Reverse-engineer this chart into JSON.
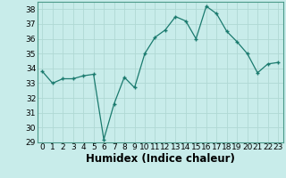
{
  "x": [
    0,
    1,
    2,
    3,
    4,
    5,
    6,
    7,
    8,
    9,
    10,
    11,
    12,
    13,
    14,
    15,
    16,
    17,
    18,
    19,
    20,
    21,
    22,
    23
  ],
  "y": [
    33.8,
    33.0,
    33.3,
    33.3,
    33.5,
    33.6,
    29.2,
    31.6,
    33.4,
    32.7,
    35.0,
    36.1,
    36.6,
    37.5,
    37.2,
    36.0,
    38.2,
    37.7,
    36.5,
    35.8,
    35.0,
    33.7,
    34.3,
    34.4
  ],
  "ylim": [
    29,
    38.5
  ],
  "yticks": [
    29,
    30,
    31,
    32,
    33,
    34,
    35,
    36,
    37,
    38
  ],
  "xlabel": "Humidex (Indice chaleur)",
  "line_color": "#1a7a6e",
  "marker_color": "#1a7a6e",
  "bg_color": "#c8ecea",
  "grid_color": "#b0d8d4",
  "axis_color": "#4a9a8a",
  "tick_label_fontsize": 6.5,
  "xlabel_fontsize": 8.5
}
